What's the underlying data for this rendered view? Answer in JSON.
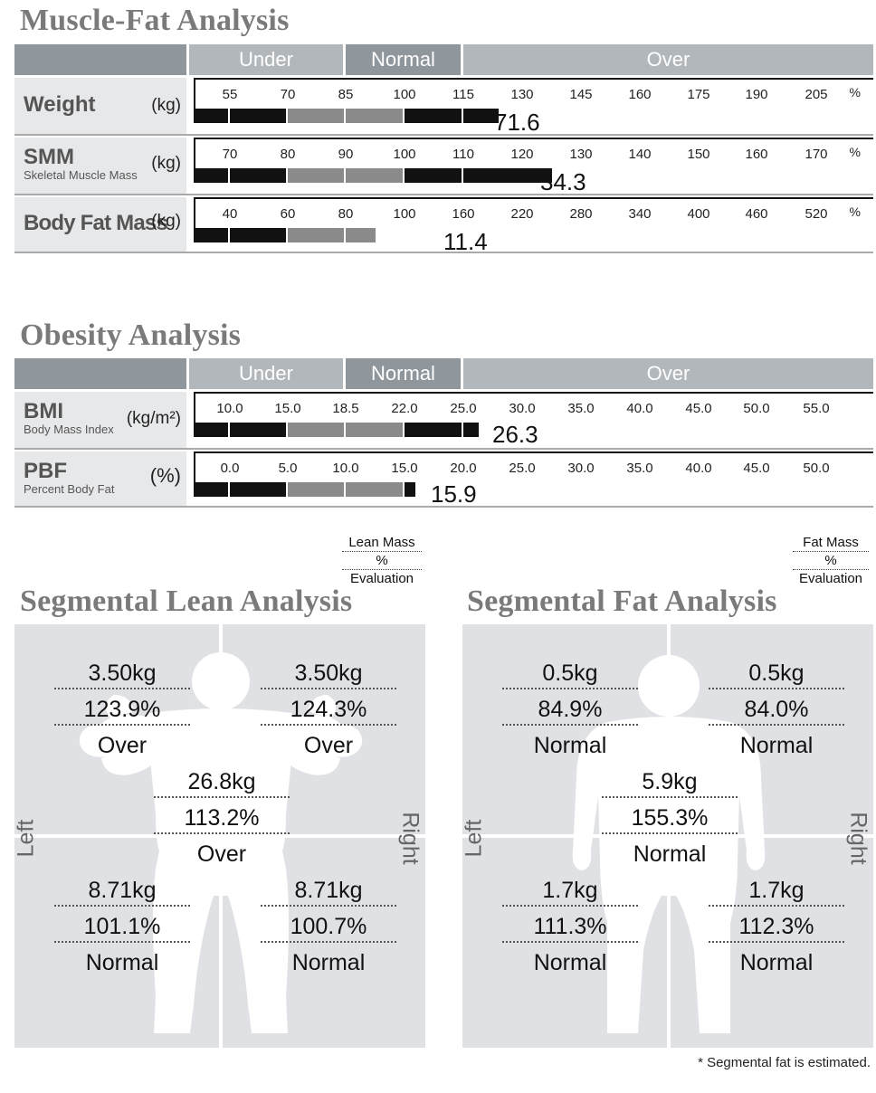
{
  "muscle_fat": {
    "title": "Muscle-Fat Analysis",
    "header": {
      "under": "Under",
      "normal": "Normal",
      "over": "Over"
    },
    "rows": [
      {
        "label": "Weight",
        "sub": "",
        "unit": "(kg)",
        "ticks": [
          "55",
          "70",
          "85",
          "100",
          "115",
          "130",
          "145",
          "160",
          "175",
          "190",
          "205"
        ],
        "percent_symbol": "%",
        "bar_percent": 123.9,
        "value": "71.6"
      },
      {
        "label": "SMM",
        "sub": "Skeletal Muscle Mass",
        "unit": "(kg)",
        "ticks": [
          "70",
          "80",
          "90",
          "100",
          "110",
          "120",
          "130",
          "140",
          "150",
          "160",
          "170"
        ],
        "percent_symbol": "%",
        "bar_percent": 125.0,
        "value": "34.3"
      },
      {
        "label": "Body Fat Mass",
        "sub": "",
        "unit": "(kg)",
        "ticks": [
          "40",
          "60",
          "80",
          "100",
          "160",
          "220",
          "280",
          "340",
          "400",
          "460",
          "520"
        ],
        "percent_symbol": "%",
        "bar_percent": 90.0,
        "value": "11.4"
      }
    ]
  },
  "obesity": {
    "title": "Obesity Analysis",
    "header": {
      "under": "Under",
      "normal": "Normal",
      "over": "Over"
    },
    "rows": [
      {
        "label": "BMI",
        "sub": "Body Mass Index",
        "unit": "(kg/m²)",
        "ticks": [
          "10.0",
          "15.0",
          "18.5",
          "22.0",
          "25.0",
          "30.0",
          "35.0",
          "40.0",
          "45.0",
          "50.0",
          "55.0"
        ],
        "bar_value": 26.3,
        "value": "26.3"
      },
      {
        "label": "PBF",
        "sub": "Percent Body Fat",
        "unit": "(%)",
        "ticks": [
          "0.0",
          "5.0",
          "10.0",
          "15.0",
          "20.0",
          "25.0",
          "30.0",
          "35.0",
          "40.0",
          "45.0",
          "50.0"
        ],
        "bar_value": 15.9,
        "value": "15.9"
      }
    ]
  },
  "segmental_lean": {
    "title": "Segmental Lean Analysis",
    "legend": [
      "Lean Mass",
      "%",
      "Evaluation"
    ],
    "left_label": "Left",
    "right_label": "Right",
    "left_arm": {
      "mass": "3.50kg",
      "percent": "123.9%",
      "eval": "Over"
    },
    "right_arm": {
      "mass": "3.50kg",
      "percent": "124.3%",
      "eval": "Over"
    },
    "trunk": {
      "mass": "26.8kg",
      "percent": "113.2%",
      "eval": "Over"
    },
    "left_leg": {
      "mass": "8.71kg",
      "percent": "101.1%",
      "eval": "Normal"
    },
    "right_leg": {
      "mass": "8.71kg",
      "percent": "100.7%",
      "eval": "Normal"
    }
  },
  "segmental_fat": {
    "title": "Segmental Fat Analysis",
    "legend": [
      "Fat Mass",
      "%",
      "Evaluation"
    ],
    "left_label": "Left",
    "right_label": "Right",
    "left_arm": {
      "mass": "0.5kg",
      "percent": "84.9%",
      "eval": "Normal"
    },
    "right_arm": {
      "mass": "0.5kg",
      "percent": "84.0%",
      "eval": "Normal"
    },
    "trunk": {
      "mass": "5.9kg",
      "percent": "155.3%",
      "eval": "Normal"
    },
    "left_leg": {
      "mass": "1.7kg",
      "percent": "111.3%",
      "eval": "Normal"
    },
    "right_leg": {
      "mass": "1.7kg",
      "percent": "112.3%",
      "eval": "Normal"
    }
  },
  "footnote": "* Segmental fat is estimated."
}
